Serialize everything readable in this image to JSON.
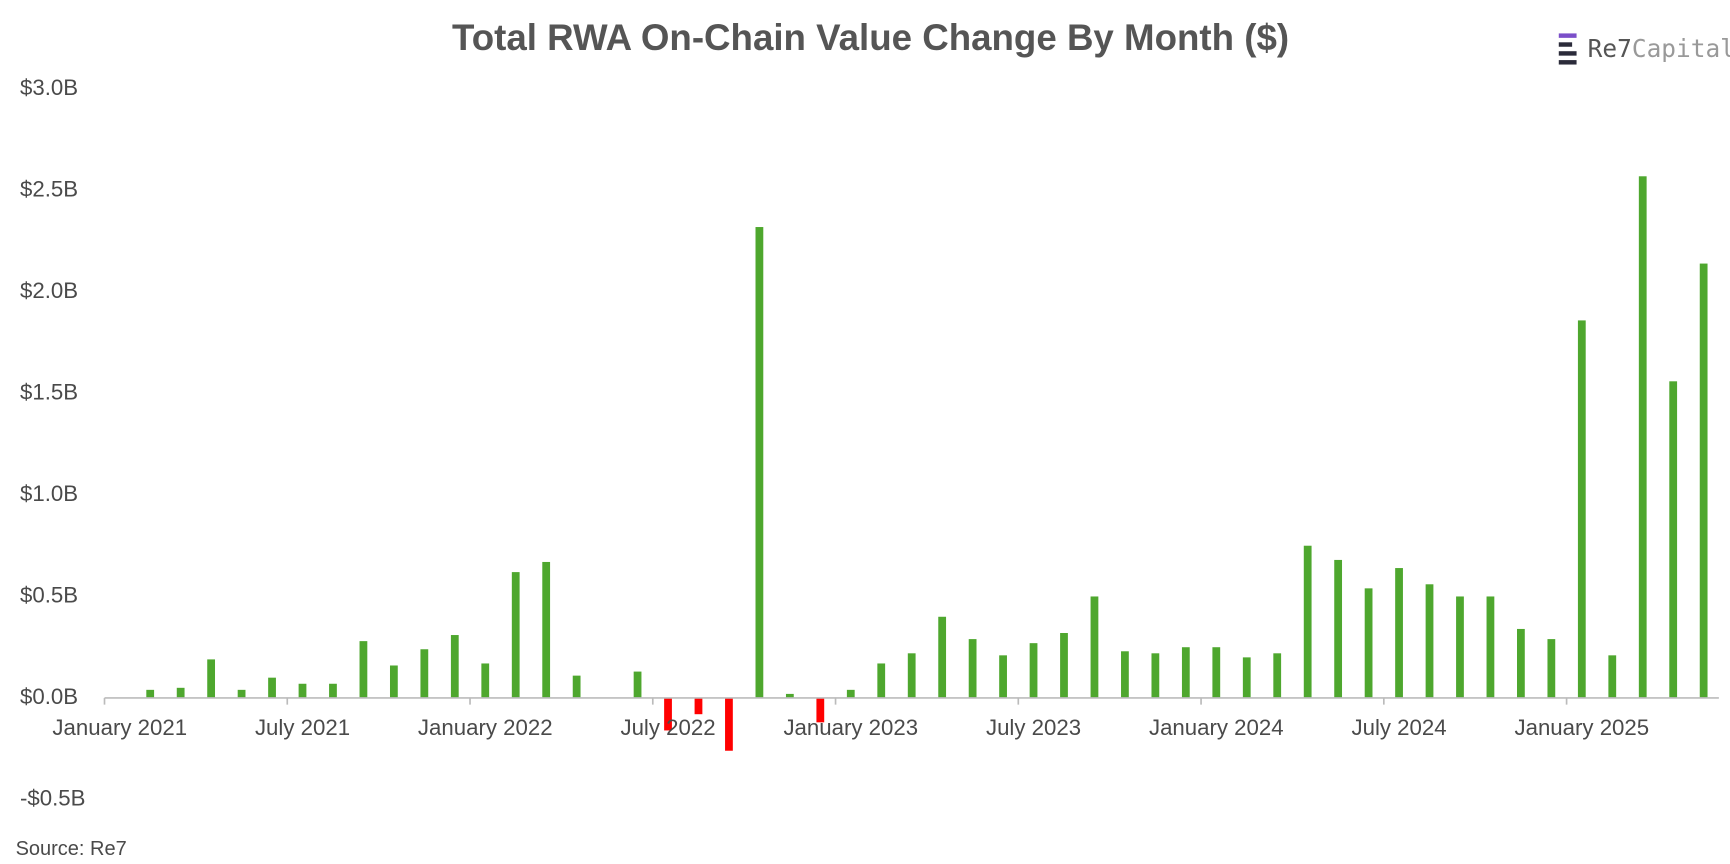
{
  "chart_data": {
    "type": "bar",
    "title": "Total RWA On-Chain Value Change By Month ($)",
    "logo": [
      "Re7",
      "Capital"
    ],
    "source": "Source: Re7",
    "categories": [
      "January 2021",
      null,
      null,
      null,
      null,
      null,
      "July 2021",
      null,
      null,
      null,
      null,
      null,
      "January 2022",
      null,
      null,
      null,
      null,
      null,
      "July 2022",
      null,
      null,
      null,
      null,
      null,
      "January 2023",
      null,
      null,
      null,
      null,
      null,
      "July 2023",
      null,
      null,
      null,
      null,
      null,
      "January 2024",
      null,
      null,
      null,
      null,
      null,
      "July 2024",
      null,
      null,
      null,
      null,
      null,
      "January 2025",
      null,
      null,
      null,
      null
    ],
    "values": [
      0,
      0.04,
      0.05,
      0.19,
      0.04,
      0.1,
      0.07,
      0.07,
      0.28,
      0.16,
      0.24,
      0.31,
      0.17,
      0.62,
      0.67,
      0.11,
      0,
      0.13,
      -0.16,
      -0.08,
      -0.26,
      2.32,
      0.02,
      -0.12,
      0.04,
      0.17,
      0.22,
      0.4,
      0.29,
      0.21,
      0.27,
      0.32,
      0.5,
      0.23,
      0.22,
      0.25,
      0.25,
      0.2,
      0.22,
      0.75,
      0.68,
      0.54,
      0.64,
      0.56,
      0.5,
      0.5,
      0.34,
      0.29,
      1.86,
      0.21,
      2.57,
      1.56,
      2.14
    ],
    "color": "#4ea72e",
    "negative_color": "#ff0000",
    "ylim": [
      -0.5,
      3.0
    ],
    "yticks": [
      {
        "value": -0.5,
        "label": "-$0.5B"
      },
      {
        "value": 0,
        "label": "$0.0B"
      },
      {
        "value": 0.5,
        "label": "$0.5B"
      },
      {
        "value": 1.0,
        "label": "$1.0B"
      },
      {
        "value": 1.5,
        "label": "$1.5B"
      },
      {
        "value": 2.0,
        "label": "$2.0B"
      },
      {
        "value": 2.5,
        "label": "$2.5B"
      },
      {
        "value": 3.0,
        "label": "$3.0B"
      }
    ],
    "grid": false
  }
}
